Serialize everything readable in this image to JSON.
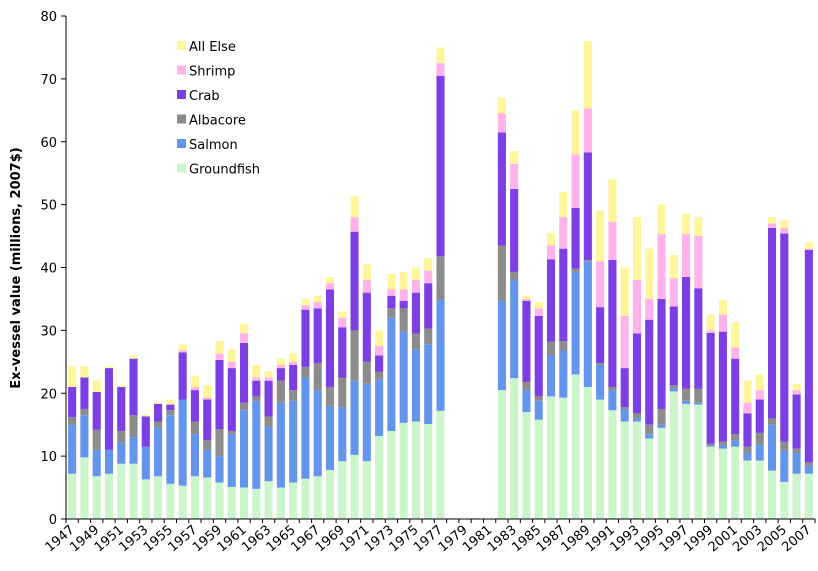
{
  "chart_data": {
    "type": "stacked-bar",
    "y_label": "Ex-vessel value (millions, 2007$)",
    "categories": [
      "1947",
      null,
      "1949",
      null,
      "1951",
      null,
      "1953",
      null,
      "1955",
      null,
      "1957",
      null,
      "1959",
      null,
      "1961",
      null,
      "1963",
      null,
      "1965",
      null,
      "1967",
      null,
      "1969",
      null,
      "1971",
      null,
      "1973",
      null,
      "1975",
      null,
      "1977",
      null,
      "1979",
      null,
      "1981",
      null,
      "1983",
      null,
      "1985",
      null,
      "1987",
      null,
      "1989",
      null,
      "1991",
      null,
      "1993",
      null,
      "1995",
      null,
      "1997",
      null,
      "1999",
      null,
      "2001",
      null,
      "2003",
      null,
      "2005",
      null,
      "2007"
    ],
    "series": [
      {
        "name": "Groundfish",
        "color": "#ccf5cc",
        "values": [
          7.2,
          9.8,
          6.8,
          7.2,
          8.8,
          8.8,
          6.3,
          6.8,
          5.6,
          5.3,
          6.8,
          6.6,
          5.8,
          5.1,
          5,
          4.8,
          6,
          5,
          5.8,
          6.4,
          6.8,
          7.8,
          9.2,
          10.2,
          9.2,
          13.2,
          14,
          15.3,
          15.5,
          15.1,
          17.2,
          null,
          null,
          null,
          null,
          20.5,
          22.4,
          17,
          15.8,
          19.5,
          19.3,
          23,
          21,
          19,
          17.3,
          15.5,
          15.5,
          12.8,
          14.5,
          20.3,
          18.3,
          18.2,
          11.5,
          11.2,
          11.5,
          9.3,
          9.3,
          7.7,
          5.9,
          7.2,
          7.2
        ]
      },
      {
        "name": "Salmon",
        "color": "#6495ed",
        "values": [
          7.8,
          6.7,
          4.2,
          3.8,
          3.4,
          4.2,
          5.2,
          7.7,
          10.9,
          13.7,
          6.7,
          4.4,
          4.2,
          8.4,
          12.3,
          14,
          8.7,
          13.5,
          13,
          16.1,
          13.7,
          10.2,
          8.6,
          11.8,
          12.3,
          9,
          18,
          14.5,
          11.5,
          12.7,
          17.6,
          null,
          null,
          null,
          null,
          14.2,
          15.6,
          3.5,
          3,
          6.5,
          7.5,
          16.3,
          20,
          5.5,
          3.2,
          2,
          0.5,
          0.7,
          0.5,
          0.5,
          0.5,
          0.3,
          0.2,
          0.5,
          1,
          1.2,
          2.5,
          7.3,
          4.9,
          3.3,
          1.3
        ]
      },
      {
        "name": "Albacore",
        "color": "#8c8c8c",
        "values": [
          1.2,
          1,
          3.2,
          0,
          1.8,
          3.5,
          0,
          1,
          0.8,
          0,
          2,
          1.5,
          4.3,
          0.5,
          1.2,
          0.7,
          1.6,
          3.5,
          1.7,
          1.7,
          4.3,
          3,
          4.7,
          8,
          3.5,
          1.2,
          1.5,
          3.7,
          2.5,
          2.5,
          7,
          null,
          null,
          null,
          null,
          8.8,
          1.3,
          1.3,
          0.7,
          2.2,
          1.5,
          0.5,
          0.2,
          0.3,
          0.5,
          0.3,
          0.8,
          1.5,
          2.5,
          0.5,
          1.9,
          2.2,
          0.3,
          0.6,
          1,
          1,
          1.9,
          1,
          1.5,
          0.7,
          0.5
        ]
      },
      {
        "name": "Crab",
        "color": "#7b3fe4",
        "values": [
          4.8,
          5,
          6,
          13,
          7,
          9,
          4.8,
          2.8,
          0.9,
          7.5,
          5,
          6.5,
          11,
          10,
          9.5,
          2.5,
          5.7,
          2,
          4,
          9.1,
          8.7,
          15.5,
          8,
          15.7,
          11,
          2.6,
          2,
          1.2,
          6.5,
          7.2,
          28.7,
          null,
          null,
          null,
          null,
          18,
          13.2,
          12.9,
          12.8,
          13.1,
          14.7,
          9.7,
          17.1,
          8.9,
          20.2,
          6.2,
          12.7,
          16.7,
          17.5,
          12.5,
          17.8,
          16,
          17.6,
          17.5,
          12,
          5.3,
          5.3,
          30.3,
          33.1,
          8.6,
          33.8
        ]
      },
      {
        "name": "Shrimp",
        "color": "#ffb3ea",
        "values": [
          0,
          0,
          0,
          0,
          0,
          0,
          0,
          0,
          0,
          0.3,
          0.5,
          0.3,
          1,
          1,
          1.5,
          0.5,
          0.5,
          0.5,
          0.5,
          0.7,
          1,
          1,
          1.5,
          2.3,
          2,
          1.5,
          1,
          1.8,
          2,
          2,
          2,
          null,
          null,
          null,
          null,
          3,
          4,
          0.3,
          1.2,
          2.2,
          5,
          8.5,
          7,
          7.3,
          6.1,
          8.3,
          8.5,
          3.3,
          10.3,
          4.5,
          6.8,
          8.3,
          0.4,
          2.7,
          1.8,
          1.7,
          1.5,
          0.7,
          0.9,
          0.7,
          0.2
        ]
      },
      {
        "name": "All Else",
        "color": "#fff59a",
        "values": [
          3.3,
          1.8,
          1.8,
          0.3,
          0.3,
          0.5,
          0.3,
          0.3,
          0.8,
          1,
          1.8,
          2,
          2,
          2,
          1.5,
          2,
          1,
          1,
          1.3,
          1,
          1,
          1,
          1,
          3.3,
          2.5,
          2.5,
          2.5,
          2.8,
          2,
          2,
          2.5,
          null,
          null,
          null,
          null,
          2.5,
          2,
          0.5,
          1,
          2,
          4,
          7,
          10.7,
          8,
          6.7,
          7.7,
          10,
          8,
          4.7,
          3.7,
          3.2,
          3,
          2.5,
          2.3,
          4,
          3.5,
          2.5,
          1,
          1.2,
          1,
          1
        ]
      }
    ],
    "ylim": [
      0,
      80
    ],
    "yticks": [
      0,
      10,
      20,
      30,
      40,
      50,
      60,
      70,
      80
    ],
    "legend": "upper-left"
  }
}
